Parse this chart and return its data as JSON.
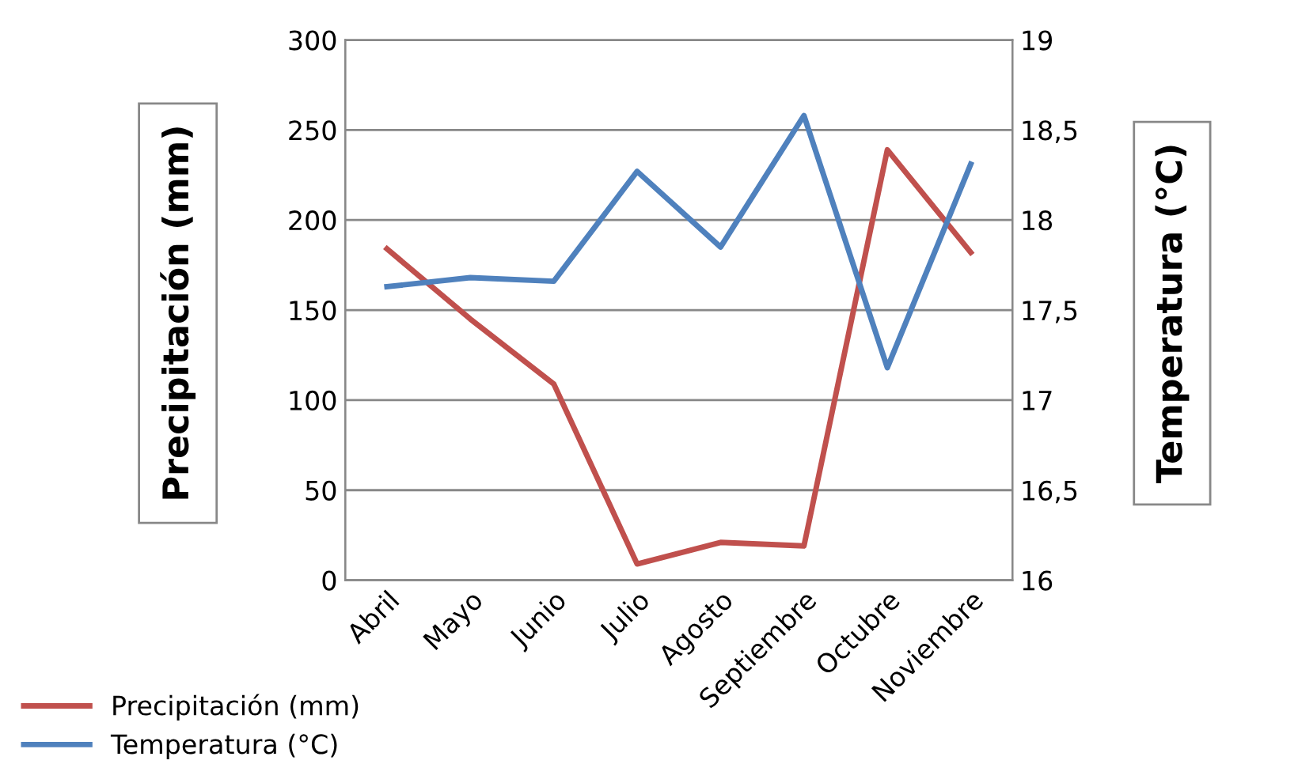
{
  "chart_data": {
    "type": "line",
    "categories": [
      "Abril",
      "Mayo",
      "Junio",
      "Julio",
      "Agosto",
      "Septiembre",
      "Octubre",
      "Noviembre"
    ],
    "series": [
      {
        "name": "Precipitación (mm)",
        "color": "#c0504d",
        "values": [
          184,
          145,
          109,
          9,
          21,
          19,
          239,
          182
        ]
      },
      {
        "name": "Temperatura (°C)",
        "color": "#4f81bd",
        "axis": "y2",
        "values": [
          17.63,
          17.68,
          17.66,
          18.27,
          17.85,
          18.58,
          17.18,
          18.31
        ]
      }
    ],
    "ylabel": "Precipitación (mm)",
    "y2label": "Temperatura (°C)",
    "ylim": [
      0,
      300
    ],
    "yticks": [
      0,
      50,
      100,
      150,
      200,
      250,
      300
    ],
    "y2lim": [
      16,
      19
    ],
    "y2ticks": [
      16,
      {
        "value": 16.5,
        "label": "16,5"
      },
      17,
      {
        "value": 17.5,
        "label": "17,5"
      },
      18,
      {
        "value": 18.5,
        "label": "18,5"
      },
      19
    ],
    "grid": "y",
    "legend": "bottom left",
    "marker": "none",
    "line_style": "solid"
  }
}
